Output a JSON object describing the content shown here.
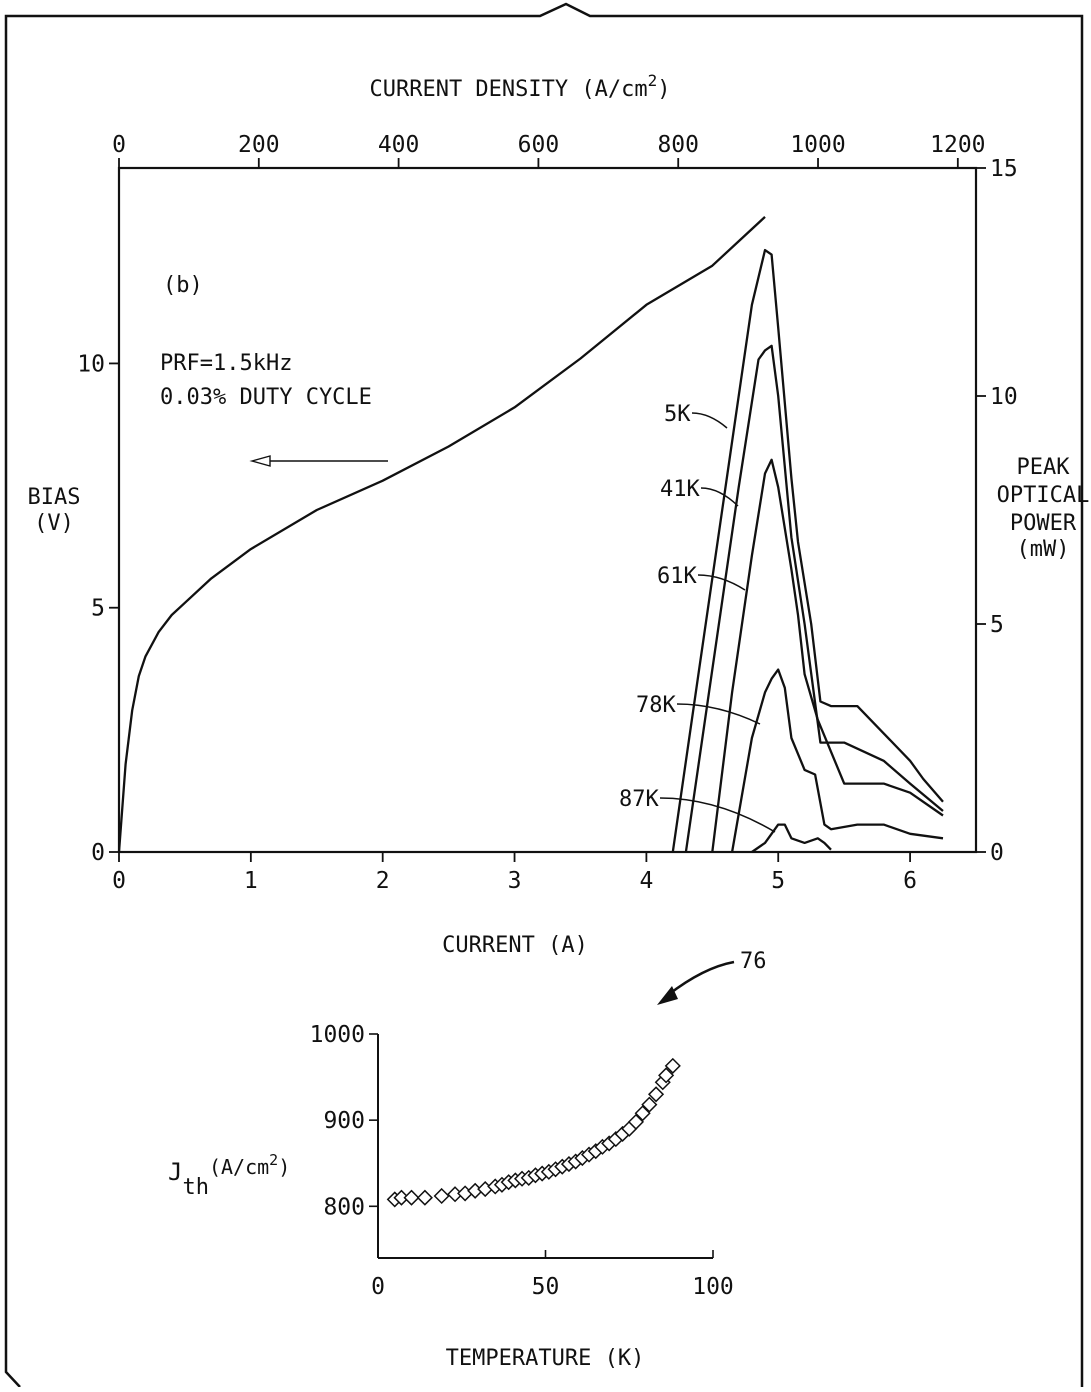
{
  "chart_data": [
    {
      "type": "line",
      "panel_label": "(b)",
      "x_bottom": {
        "label": "CURRENT (A)",
        "range": [
          0,
          6.5
        ],
        "ticks": [
          "0",
          "1",
          "2",
          "3",
          "4",
          "5",
          "6"
        ]
      },
      "x_top": {
        "label": "CURRENT DENSITY (A/cm",
        "label_sup": "2",
        "label_end": ")",
        "range": [
          0,
          1226
        ],
        "ticks": [
          "0",
          "200",
          "400",
          "600",
          "800",
          "1000",
          "1200"
        ]
      },
      "y_left": {
        "label_line1": "BIAS",
        "label_line2": "(V)",
        "range": [
          0,
          14
        ],
        "ticks": [
          "0",
          "5",
          "10"
        ]
      },
      "y_right": {
        "label_line1": "PEAK",
        "label_line2": "OPTICAL",
        "label_line3": "POWER",
        "label_line4": "(mW)",
        "range": [
          0,
          15
        ],
        "ticks": [
          "0",
          "5",
          "10",
          "15"
        ]
      },
      "annotation_line1": "PRF=1.5kHz",
      "annotation_line2": "0.03% DUTY CYCLE",
      "series": [
        {
          "name": "BIAS",
          "axis": "left",
          "x": [
            0,
            0.05,
            0.1,
            0.15,
            0.2,
            0.3,
            0.4,
            0.5,
            0.7,
            1.0,
            1.5,
            2.0,
            2.5,
            3.0,
            3.5,
            4.0,
            4.5,
            4.9
          ],
          "y": [
            0,
            1.8,
            2.9,
            3.6,
            4.0,
            4.5,
            4.85,
            5.1,
            5.6,
            6.2,
            7.0,
            7.6,
            8.3,
            9.1,
            10.1,
            11.2,
            12.0,
            13.0
          ]
        },
        {
          "name": "5K",
          "axis": "right",
          "x": [
            4.2,
            4.4,
            4.6,
            4.8,
            4.9,
            4.95,
            5.0,
            5.1,
            5.15,
            5.25,
            5.32,
            5.4,
            5.6,
            5.8,
            6.0,
            6.1,
            6.25
          ],
          "y": [
            0,
            4.0,
            8.0,
            12.0,
            13.2,
            13.1,
            11.5,
            8.2,
            6.8,
            5.0,
            3.3,
            3.2,
            3.2,
            2.6,
            2.0,
            1.6,
            1.1
          ]
        },
        {
          "name": "41K",
          "axis": "right",
          "x": [
            4.3,
            4.5,
            4.7,
            4.85,
            4.9,
            4.95,
            5.0,
            5.1,
            5.2,
            5.32,
            5.5,
            5.8,
            6.0,
            6.25
          ],
          "y": [
            0,
            4.0,
            8.0,
            10.8,
            11.0,
            11.1,
            10.0,
            6.9,
            5.0,
            2.4,
            2.4,
            2.0,
            1.5,
            0.9
          ]
        },
        {
          "name": "61K",
          "axis": "right",
          "x": [
            4.5,
            4.65,
            4.8,
            4.9,
            4.95,
            5.0,
            5.1,
            5.15,
            5.2,
            5.3,
            5.5,
            5.8,
            6.0,
            6.25
          ],
          "y": [
            0,
            3.5,
            6.5,
            8.3,
            8.6,
            8.0,
            6.2,
            5.2,
            3.9,
            2.9,
            1.5,
            1.5,
            1.3,
            0.8
          ]
        },
        {
          "name": "78K",
          "axis": "right",
          "x": [
            4.65,
            4.8,
            4.9,
            4.95,
            5.0,
            5.05,
            5.1,
            5.2,
            5.28,
            5.35,
            5.4,
            5.6,
            5.8,
            6.0,
            6.25
          ],
          "y": [
            0,
            2.5,
            3.5,
            3.8,
            4.0,
            3.6,
            2.5,
            1.8,
            1.7,
            0.6,
            0.5,
            0.6,
            0.6,
            0.4,
            0.3
          ]
        },
        {
          "name": "87K",
          "axis": "right",
          "x": [
            4.8,
            4.9,
            4.95,
            5.0,
            5.05,
            5.1,
            5.2,
            5.3,
            5.35,
            5.4
          ],
          "y": [
            0,
            0.2,
            0.4,
            0.6,
            0.6,
            0.3,
            0.2,
            0.3,
            0.2,
            0.05
          ]
        }
      ]
    },
    {
      "type": "scatter",
      "reference_numeral": "76",
      "x_label": "TEMPERATURE (K)",
      "y_label_main": "J",
      "y_label_sub": "th",
      "y_label_unit": "(A/cm",
      "y_label_sup": "2",
      "y_label_end": ")",
      "xlim": [
        0,
        100
      ],
      "ylim": [
        740,
        1000
      ],
      "x_ticks": [
        "0",
        "50",
        "100"
      ],
      "y_ticks": [
        "800",
        "900",
        "1000"
      ],
      "points": [
        [
          5,
          808
        ],
        [
          7,
          810
        ],
        [
          10,
          810
        ],
        [
          14,
          810
        ],
        [
          19,
          812
        ],
        [
          23,
          814
        ],
        [
          26,
          815
        ],
        [
          29,
          818
        ],
        [
          32,
          820
        ],
        [
          35,
          823
        ],
        [
          37,
          825
        ],
        [
          39,
          828
        ],
        [
          41,
          830
        ],
        [
          43,
          832
        ],
        [
          45,
          833
        ],
        [
          47,
          836
        ],
        [
          49,
          838
        ],
        [
          51,
          840
        ],
        [
          53,
          843
        ],
        [
          55,
          846
        ],
        [
          57,
          849
        ],
        [
          59,
          852
        ],
        [
          61,
          856
        ],
        [
          63,
          860
        ],
        [
          65,
          864
        ],
        [
          67,
          869
        ],
        [
          69,
          873
        ],
        [
          71,
          878
        ],
        [
          73,
          884
        ],
        [
          75,
          890
        ],
        [
          77,
          898
        ],
        [
          79,
          908
        ],
        [
          81,
          918
        ],
        [
          83,
          930
        ],
        [
          85,
          944
        ],
        [
          86,
          952
        ],
        [
          88,
          963
        ]
      ]
    }
  ]
}
